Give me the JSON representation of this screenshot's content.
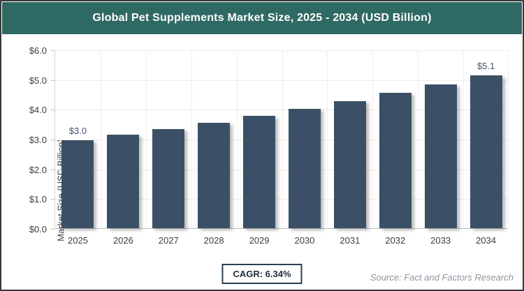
{
  "header": {
    "title": "Global Pet Supplements Market Size, 2025 - 2034 (USD Billion)"
  },
  "chart_data": {
    "type": "bar",
    "title": "Global Pet Supplements Market Size, 2025 - 2034 (USD Billion)",
    "categories": [
      "2025",
      "2026",
      "2027",
      "2028",
      "2029",
      "2030",
      "2031",
      "2032",
      "2033",
      "2034"
    ],
    "values": [
      2.95,
      3.14,
      3.34,
      3.55,
      3.77,
      4.01,
      4.27,
      4.54,
      4.82,
      5.13
    ],
    "point_labels": [
      "$3.0",
      "",
      "",
      "",
      "",
      "",
      "",
      "",
      "",
      "$5.1"
    ],
    "xlabel": "",
    "ylabel": "Market Size (USD Billion)",
    "ylim": [
      0,
      6
    ],
    "ytick_step": 1,
    "ytick_labels": [
      "$0.0",
      "$1.0",
      "$2.0",
      "$3.0",
      "$4.0",
      "$5.0",
      "$6.0"
    ],
    "grid": true,
    "legend": "none",
    "bar_color": "#3b5066"
  },
  "footer": {
    "cagr_label": "CAGR: 6.34%",
    "source": "Source: Fact and Factors Research"
  },
  "colors": {
    "header_bg": "#2f6963",
    "bar": "#3b5066",
    "value_label": "#44536b",
    "grid": "#ececec",
    "axis": "#bdbdbd",
    "tick_text": "#404040",
    "cagr_border": "#2c3e50",
    "source_text": "#8d959e",
    "page_border": "#3a3a3a"
  }
}
